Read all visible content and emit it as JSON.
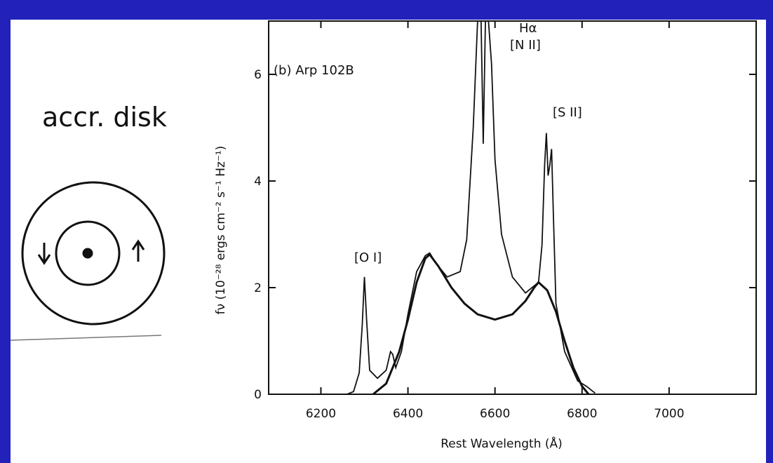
{
  "slide": {
    "label": "accr. disk"
  },
  "chart_data": {
    "type": "line",
    "annotations": [
      "(b) Arp 102B",
      "Hα",
      "[N II]",
      "[S II]",
      "[O I]"
    ],
    "xlabel": "Rest Wavelength (Å)",
    "ylabel": "fν (10⁻²⁸ ergs cm⁻² s⁻¹ Hz⁻¹)",
    "xlim": [
      6080,
      7200
    ],
    "xticks": [
      6200,
      6400,
      6600,
      6800,
      7000
    ],
    "ylim": [
      0,
      7
    ],
    "yticks": [
      0,
      2,
      4,
      6
    ],
    "series": [
      {
        "color": "#111111",
        "x": [
          6260,
          6275,
          6288,
          6295,
          6300,
          6305,
          6312,
          6330,
          6350,
          6360,
          6365,
          6372,
          6385,
          6400,
          6420,
          6440,
          6450,
          6465,
          6490,
          6520,
          6535,
          6545,
          6550,
          6555,
          6560,
          6568,
          6573,
          6578,
          6585,
          6592,
          6600,
          6615,
          6640,
          6670,
          6700,
          6708,
          6714,
          6718,
          6722,
          6726,
          6730,
          6734,
          6740,
          6760,
          6790,
          6810,
          6830
        ],
        "values": [
          0,
          0.05,
          0.4,
          1.3,
          2.2,
          1.4,
          0.45,
          0.3,
          0.45,
          0.8,
          0.75,
          0.5,
          0.8,
          1.5,
          2.3,
          2.6,
          2.65,
          2.45,
          2.2,
          2.3,
          2.9,
          4.3,
          5.0,
          6.0,
          7.0,
          7.0,
          4.7,
          7.0,
          7.0,
          6.2,
          4.4,
          3.0,
          2.2,
          1.9,
          2.1,
          2.8,
          4.3,
          4.9,
          4.1,
          4.3,
          4.6,
          3.4,
          1.7,
          0.8,
          0.25,
          0.15,
          0.02
        ]
      },
      {
        "color": "#111111",
        "x": [
          6320,
          6350,
          6380,
          6400,
          6420,
          6440,
          6450,
          6470,
          6500,
          6530,
          6560,
          6600,
          6640,
          6670,
          6690,
          6700,
          6720,
          6740,
          6760,
          6780,
          6800,
          6815
        ],
        "values": [
          0,
          0.2,
          0.8,
          1.4,
          2.1,
          2.55,
          2.62,
          2.4,
          2.0,
          1.7,
          1.5,
          1.4,
          1.5,
          1.75,
          2.0,
          2.1,
          1.95,
          1.55,
          1.0,
          0.5,
          0.15,
          0
        ]
      }
    ]
  }
}
